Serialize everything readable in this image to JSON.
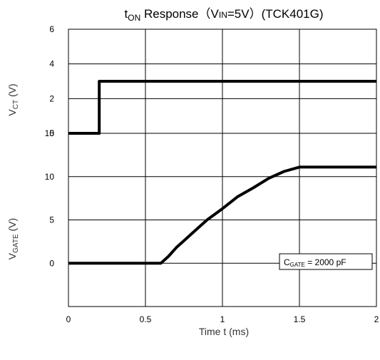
{
  "chart_data": {
    "type": "line",
    "title": {
      "t": "t",
      "t_sub": "ON",
      "middle": " Response（V",
      "vin_sub": "IN",
      "end": "=5V）(TCK401G)"
    },
    "xlabel": "Time  t (ms)",
    "xlim": [
      0,
      2
    ],
    "xticks": [
      "0",
      "0.5",
      "1",
      "1.5",
      "2"
    ],
    "panels": [
      {
        "ylabel": {
          "main": "V",
          "sub": "CT",
          "unit": " (V)"
        },
        "ylim": [
          0,
          6
        ],
        "yticks": [
          "0",
          "2",
          "4",
          "6"
        ],
        "series": [
          {
            "x": [
              0,
              0.2,
              0.2,
              2.0
            ],
            "y": [
              0,
              0,
              3,
              3
            ]
          }
        ]
      },
      {
        "ylabel": {
          "main": "V",
          "sub": "GATE",
          "unit": " (V)"
        },
        "ylim": [
          -5,
          15
        ],
        "yticks": [
          "0",
          "5",
          "10",
          "15"
        ],
        "series": [
          {
            "x": [
              0,
              0.6,
              0.65,
              0.7,
              0.8,
              0.9,
              1.0,
              1.1,
              1.2,
              1.3,
              1.4,
              1.5,
              1.6,
              2.0
            ],
            "y": [
              0,
              0,
              0.8,
              1.8,
              3.4,
              5.0,
              6.3,
              7.7,
              8.7,
              9.8,
              10.6,
              11.1,
              11.1,
              11.1
            ]
          }
        ],
        "annotation": {
          "main": "C",
          "sub": "GATE",
          "rest": " = 2000 pF"
        }
      }
    ],
    "grid": true
  }
}
